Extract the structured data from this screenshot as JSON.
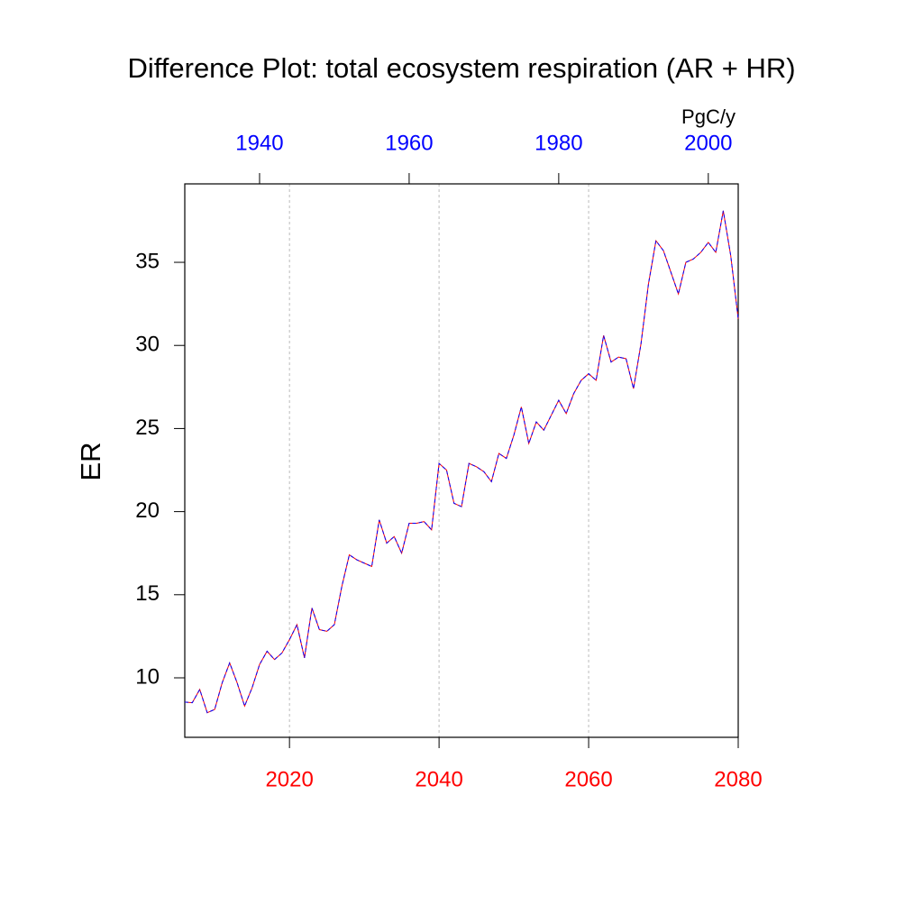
{
  "chart_data": {
    "type": "line",
    "title": "Difference Plot: total ecosystem respiration (AR + HR)",
    "y_label": "ER",
    "units_label": "PgC/y",
    "x": [
      2006,
      2007,
      2008,
      2009,
      2010,
      2011,
      2012,
      2013,
      2014,
      2015,
      2016,
      2017,
      2018,
      2019,
      2020,
      2021,
      2022,
      2023,
      2024,
      2025,
      2026,
      2027,
      2028,
      2029,
      2030,
      2031,
      2032,
      2033,
      2034,
      2035,
      2036,
      2037,
      2038,
      2039,
      2040,
      2041,
      2042,
      2043,
      2044,
      2045,
      2046,
      2047,
      2048,
      2049,
      2050,
      2051,
      2052,
      2053,
      2054,
      2055,
      2056,
      2057,
      2058,
      2059,
      2060,
      2061,
      2062,
      2063,
      2064,
      2065,
      2066,
      2067,
      2068,
      2069,
      2070,
      2071,
      2072,
      2073,
      2074,
      2075,
      2076,
      2077,
      2078,
      2079,
      2080
    ],
    "series": [
      {
        "color": "#ff0000",
        "dash": false,
        "values": [
          8.54,
          8.5,
          9.3,
          7.9,
          8.1,
          9.7,
          10.9,
          9.7,
          8.3,
          9.4,
          10.8,
          11.6,
          11.1,
          11.5,
          12.3,
          13.2,
          11.2,
          14.2,
          12.9,
          12.8,
          13.2,
          15.5,
          17.4,
          17.1,
          16.9,
          16.7,
          19.5,
          18.1,
          18.5,
          17.5,
          19.3,
          19.3,
          19.4,
          18.9,
          22.9,
          22.5,
          20.5,
          20.3,
          22.9,
          22.7,
          22.4,
          21.8,
          23.5,
          23.2,
          24.6,
          26.3,
          24.1,
          25.4,
          24.9,
          25.8,
          26.7,
          25.9,
          27.1,
          27.9,
          28.3,
          27.9,
          30.6,
          29.0,
          29.3,
          29.2,
          27.4,
          30.1,
          33.7,
          36.3,
          35.7,
          34.4,
          33.1,
          35.0,
          35.2,
          35.6,
          36.2,
          35.6,
          38.1,
          35.4,
          31.6
        ]
      },
      {
        "color": "#0000ff",
        "dash": true,
        "values": [
          8.54,
          8.5,
          9.3,
          7.9,
          8.1,
          9.7,
          10.9,
          9.7,
          8.3,
          9.4,
          10.8,
          11.6,
          11.1,
          11.5,
          12.3,
          13.2,
          11.2,
          14.2,
          12.9,
          12.8,
          13.2,
          15.5,
          17.4,
          17.1,
          16.9,
          16.7,
          19.5,
          18.1,
          18.5,
          17.5,
          19.3,
          19.3,
          19.4,
          18.9,
          22.9,
          22.5,
          20.5,
          20.3,
          22.9,
          22.7,
          22.4,
          21.8,
          23.5,
          23.2,
          24.6,
          26.3,
          24.1,
          25.4,
          24.9,
          25.8,
          26.7,
          25.9,
          27.1,
          27.9,
          28.3,
          27.9,
          30.6,
          29.0,
          29.3,
          29.2,
          27.4,
          30.1,
          33.7,
          36.3,
          35.7,
          34.4,
          33.1,
          35.0,
          35.2,
          35.6,
          36.2,
          35.6,
          38.1,
          35.4,
          31.6
        ]
      }
    ],
    "xlim": [
      2006,
      2080
    ],
    "xticks": [
      2020,
      2040,
      2060,
      2080
    ],
    "xtick_color": "#ff0000",
    "x2lim": [
      1930,
      2004
    ],
    "x2ticks": [
      1940,
      1960,
      1980,
      2000
    ],
    "x2tick_color": "#0000ff",
    "ylim": [
      6.42,
      39.72
    ],
    "yticks": [
      10,
      15,
      20,
      25,
      30,
      35
    ],
    "grid": true
  }
}
